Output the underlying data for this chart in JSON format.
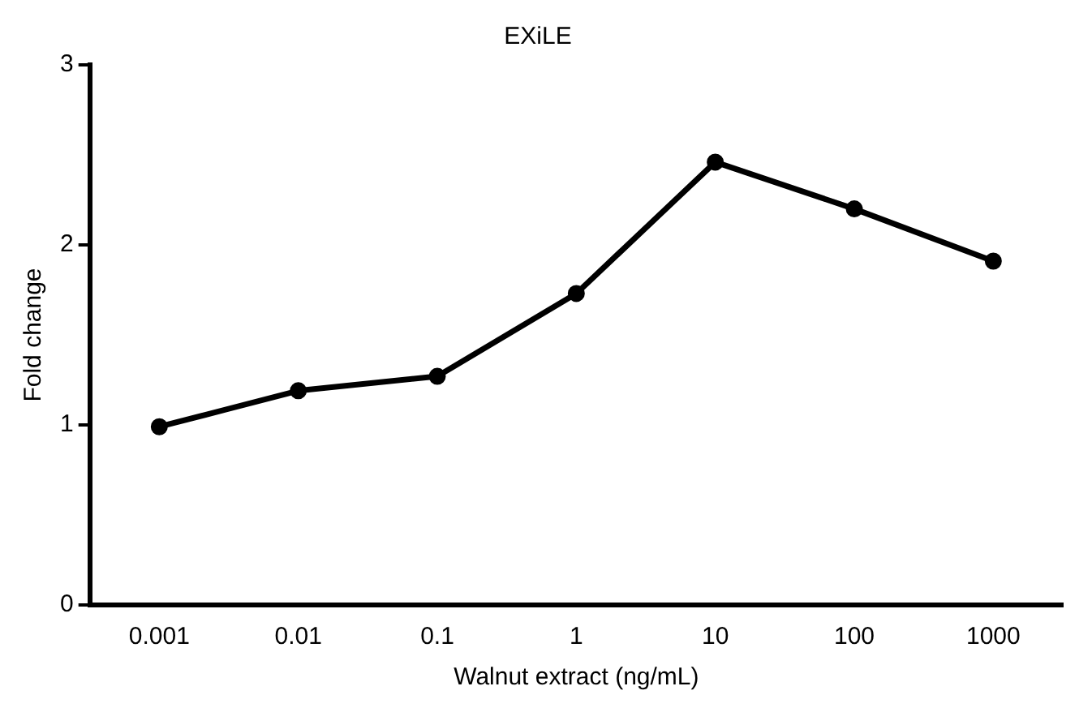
{
  "chart_data": {
    "type": "line",
    "title": "EXiLE",
    "xlabel": "Walnut extract (ng/mL)",
    "ylabel": "Fold change",
    "categories": [
      "0.001",
      "0.01",
      "0.1",
      "1",
      "10",
      "100",
      "1000"
    ],
    "series": [
      {
        "color": "#000000",
        "values": [
          0.99,
          1.19,
          1.27,
          1.73,
          2.46,
          2.2,
          1.91
        ]
      }
    ],
    "ylim": [
      0,
      3
    ],
    "yticks": [
      0,
      1,
      2,
      3
    ],
    "grid": false,
    "legend": false,
    "marker": "circle",
    "line_style": "solid"
  }
}
